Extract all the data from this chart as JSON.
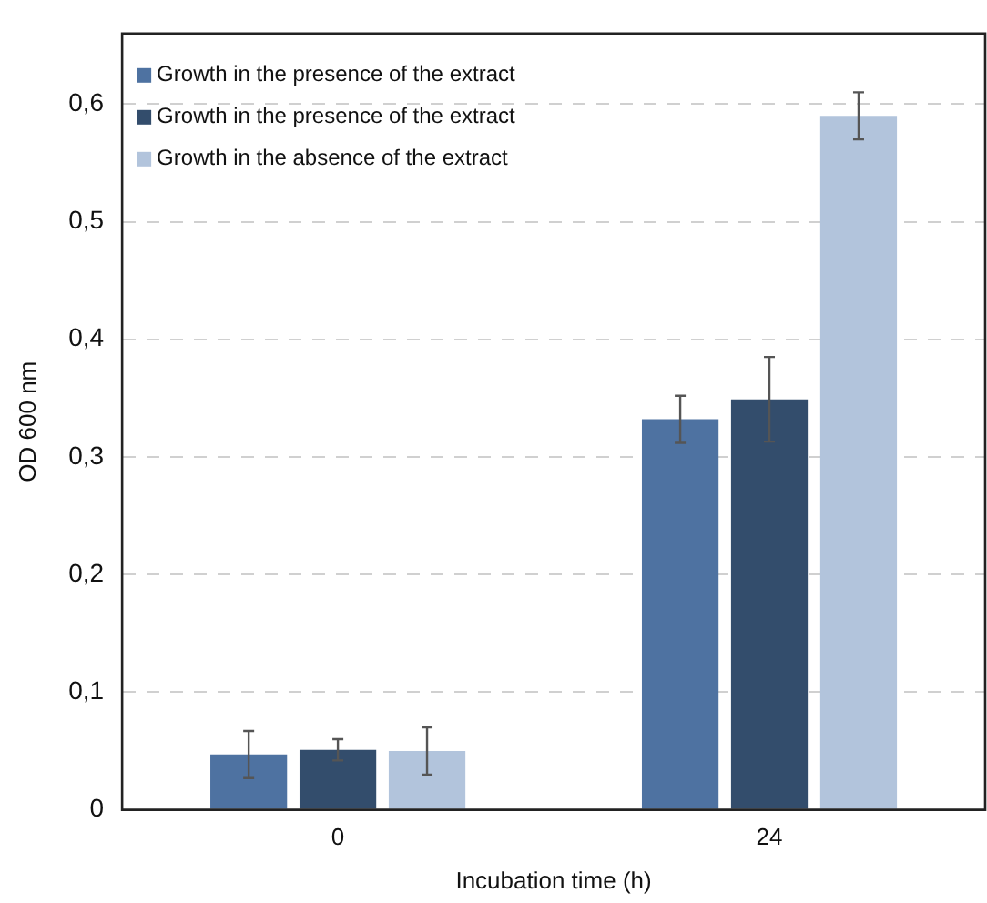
{
  "chart_data": {
    "type": "bar",
    "xlabel": "Incubation time (h)",
    "ylabel": "OD 600 nm",
    "categories": [
      "0",
      "24"
    ],
    "series": [
      {
        "name": "Growth in the presence of the extract",
        "color": "#4e72a1",
        "values": [
          0.047,
          0.332
        ],
        "errors": [
          0.02,
          0.02
        ]
      },
      {
        "name": "Growth in the presence of the extract",
        "color": "#334d6c",
        "values": [
          0.051,
          0.349
        ],
        "errors": [
          0.009,
          0.036
        ]
      },
      {
        "name": "Growth in the absence of the extract",
        "color": "#b2c4dc",
        "values": [
          0.05,
          0.59
        ],
        "errors": [
          0.02,
          0.02
        ]
      }
    ],
    "ylim": [
      0,
      0.66
    ],
    "yticks": [
      {
        "value": 0,
        "label": "0"
      },
      {
        "value": 0.1,
        "label": "0,1"
      },
      {
        "value": 0.2,
        "label": "0,2"
      },
      {
        "value": 0.3,
        "label": "0,3"
      },
      {
        "value": 0.4,
        "label": "0,4"
      },
      {
        "value": 0.5,
        "label": "0,5"
      },
      {
        "value": 0.6,
        "label": "0,6"
      }
    ],
    "grid": "y",
    "legend": "top left"
  }
}
